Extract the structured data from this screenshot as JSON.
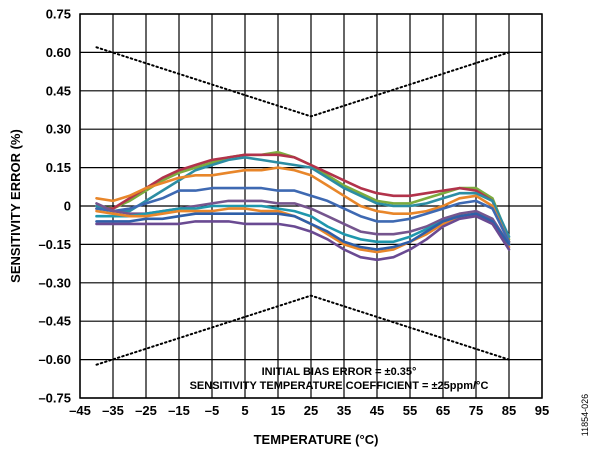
{
  "chart_data": {
    "type": "line",
    "xlabel": "TEMPERATURE (°C)",
    "ylabel": "SENSITIVITY ERROR (%)",
    "xlim": [
      -45,
      95
    ],
    "ylim": [
      -0.75,
      0.75
    ],
    "grid": true,
    "x_ticks": [
      "–45",
      "–35",
      "–25",
      "–15",
      "–5",
      "5",
      "15",
      "25",
      "35",
      "45",
      "55",
      "65",
      "75",
      "85",
      "95"
    ],
    "y_ticks": [
      {
        "value": 0.75,
        "label": "0.75"
      },
      {
        "value": 0.6,
        "label": "0.60"
      },
      {
        "value": 0.45,
        "label": "0.45"
      },
      {
        "value": 0.3,
        "label": "0.30"
      },
      {
        "value": 0.15,
        "label": "0.15"
      },
      {
        "value": 0.0,
        "label": "0"
      },
      {
        "value": -0.15,
        "label": "–0.15"
      },
      {
        "value": -0.3,
        "label": "–0.30"
      },
      {
        "value": -0.45,
        "label": "–0.45"
      },
      {
        "value": -0.6,
        "label": "–0.60"
      },
      {
        "value": -0.75,
        "label": "–0.75"
      }
    ],
    "annotations": [
      "INITIAL BIAS ERROR = ±0.35°",
      "SENSITIVITY TEMPERATURE COEFFICIENT = ±25ppm/°C"
    ],
    "figure_id": "11854-026",
    "limits": [
      {
        "style": "dotted",
        "color": "#000000",
        "x": [
          -40,
          25,
          85
        ],
        "y": [
          0.62,
          0.35,
          0.6
        ]
      },
      {
        "style": "dotted",
        "color": "#000000",
        "x": [
          -40,
          25,
          85
        ],
        "y": [
          -0.62,
          -0.35,
          -0.6
        ]
      }
    ],
    "x": [
      -40,
      -35,
      -30,
      -25,
      -20,
      -15,
      -10,
      -5,
      0,
      5,
      10,
      15,
      20,
      25,
      30,
      35,
      40,
      45,
      50,
      55,
      60,
      65,
      70,
      75,
      80,
      85
    ],
    "series": [
      {
        "color": "#7cab3e",
        "values": [
          0.0,
          -0.01,
          0.02,
          0.06,
          0.1,
          0.13,
          0.15,
          0.17,
          0.19,
          0.2,
          0.2,
          0.21,
          0.19,
          0.16,
          0.12,
          0.08,
          0.05,
          0.02,
          0.01,
          0.01,
          0.03,
          0.05,
          0.07,
          0.07,
          0.03,
          -0.13
        ]
      },
      {
        "color": "#b2334b",
        "values": [
          -0.01,
          -0.01,
          0.03,
          0.07,
          0.11,
          0.14,
          0.16,
          0.18,
          0.19,
          0.2,
          0.2,
          0.2,
          0.19,
          0.16,
          0.13,
          0.1,
          0.07,
          0.05,
          0.04,
          0.04,
          0.05,
          0.06,
          0.07,
          0.06,
          0.02,
          -0.14
        ]
      },
      {
        "color": "#2c8da3",
        "values": [
          0.0,
          -0.02,
          -0.02,
          0.02,
          0.06,
          0.1,
          0.14,
          0.16,
          0.18,
          0.19,
          0.18,
          0.17,
          0.16,
          0.15,
          0.11,
          0.07,
          0.04,
          0.01,
          0.0,
          0.0,
          0.01,
          0.03,
          0.05,
          0.05,
          0.02,
          -0.12
        ]
      },
      {
        "color": "#e8862a",
        "values": [
          0.03,
          0.02,
          0.04,
          0.07,
          0.09,
          0.11,
          0.12,
          0.12,
          0.13,
          0.14,
          0.14,
          0.15,
          0.14,
          0.12,
          0.08,
          0.04,
          0.0,
          -0.02,
          -0.03,
          -0.03,
          -0.02,
          0.0,
          0.03,
          0.04,
          0.0,
          -0.14
        ]
      },
      {
        "color": "#3e69b2",
        "values": [
          -0.01,
          -0.02,
          -0.01,
          0.01,
          0.03,
          0.06,
          0.06,
          0.07,
          0.07,
          0.07,
          0.07,
          0.06,
          0.06,
          0.04,
          0.02,
          -0.01,
          -0.04,
          -0.06,
          -0.06,
          -0.05,
          -0.03,
          -0.01,
          0.01,
          0.02,
          -0.01,
          -0.14
        ]
      },
      {
        "color": "#75558e",
        "values": [
          0.01,
          -0.02,
          -0.03,
          -0.03,
          -0.02,
          -0.01,
          0.0,
          0.01,
          0.02,
          0.02,
          0.02,
          0.01,
          0.01,
          -0.01,
          -0.04,
          -0.07,
          -0.1,
          -0.11,
          -0.11,
          -0.1,
          -0.08,
          -0.05,
          -0.03,
          -0.02,
          -0.05,
          -0.15
        ]
      },
      {
        "color": "#1f97ad",
        "values": [
          -0.04,
          -0.04,
          -0.04,
          -0.03,
          -0.02,
          -0.01,
          -0.01,
          0.0,
          0.0,
          0.0,
          0.0,
          -0.01,
          -0.02,
          -0.04,
          -0.08,
          -0.11,
          -0.13,
          -0.14,
          -0.14,
          -0.12,
          -0.09,
          -0.06,
          -0.04,
          -0.03,
          -0.06,
          -0.15
        ]
      },
      {
        "color": "#e8862a",
        "values": [
          -0.02,
          -0.03,
          -0.04,
          -0.04,
          -0.03,
          -0.02,
          -0.02,
          -0.02,
          -0.01,
          -0.01,
          -0.02,
          -0.02,
          -0.04,
          -0.07,
          -0.11,
          -0.15,
          -0.17,
          -0.18,
          -0.17,
          -0.14,
          -0.11,
          -0.07,
          -0.04,
          -0.03,
          -0.07,
          -0.16
        ]
      },
      {
        "color": "#2f5fa8",
        "values": [
          -0.06,
          -0.06,
          -0.06,
          -0.05,
          -0.05,
          -0.04,
          -0.03,
          -0.03,
          -0.03,
          -0.03,
          -0.03,
          -0.03,
          -0.04,
          -0.07,
          -0.1,
          -0.14,
          -0.16,
          -0.17,
          -0.16,
          -0.14,
          -0.1,
          -0.06,
          -0.04,
          -0.03,
          -0.06,
          -0.15
        ]
      },
      {
        "color": "#6a4a92",
        "values": [
          -0.07,
          -0.07,
          -0.07,
          -0.07,
          -0.07,
          -0.07,
          -0.06,
          -0.06,
          -0.06,
          -0.07,
          -0.07,
          -0.07,
          -0.08,
          -0.1,
          -0.13,
          -0.17,
          -0.2,
          -0.21,
          -0.2,
          -0.17,
          -0.13,
          -0.08,
          -0.05,
          -0.04,
          -0.07,
          -0.17
        ]
      }
    ]
  }
}
